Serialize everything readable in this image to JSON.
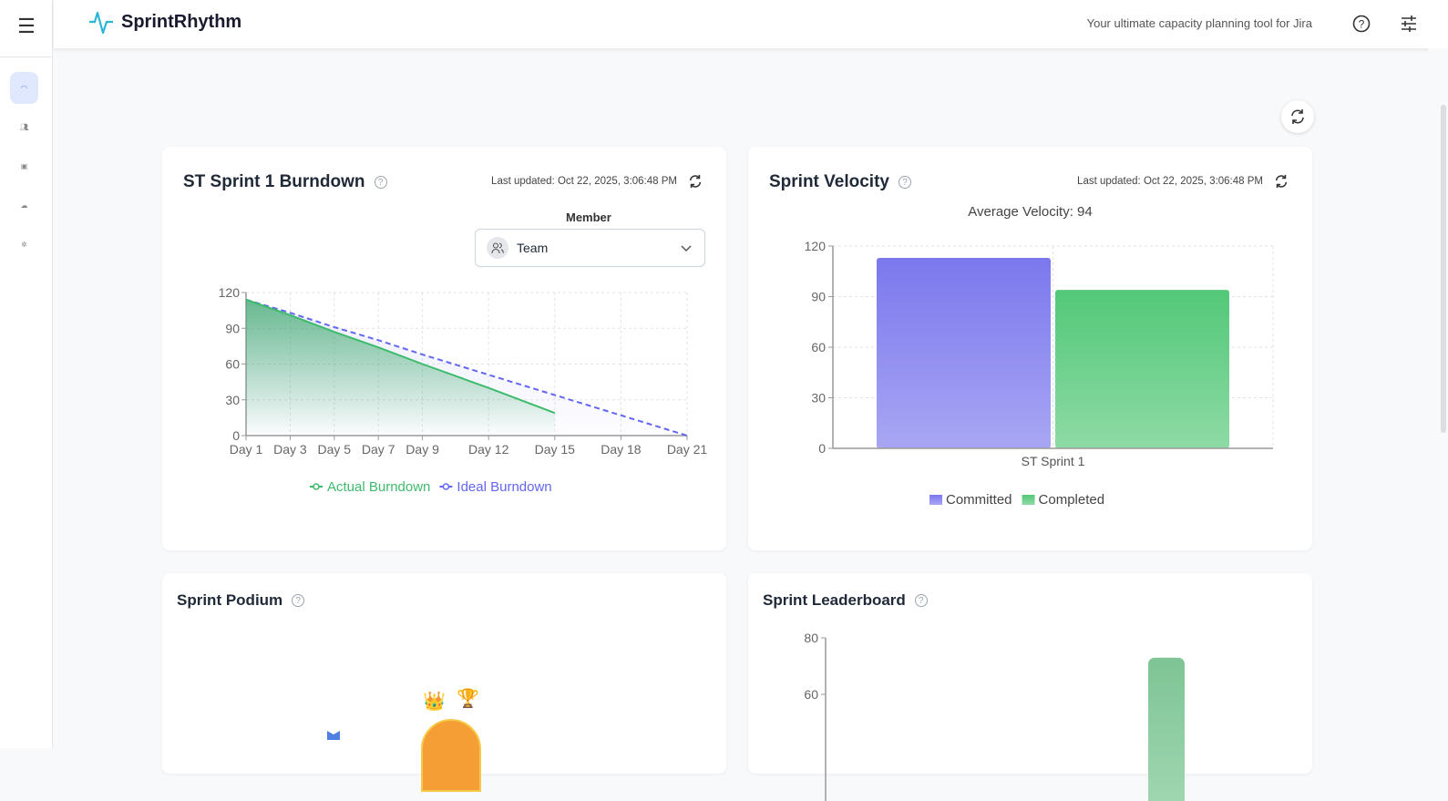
{
  "app": {
    "name": "SprintRhythm",
    "tagline": "Your ultimate capacity planning tool for Jira"
  },
  "sidebar": {
    "items": [
      {
        "icon": "gauge-icon",
        "active": true
      },
      {
        "icon": "users-icon"
      },
      {
        "icon": "clipboard-icon"
      },
      {
        "icon": "cloud-icon"
      },
      {
        "icon": "settings-icon"
      }
    ]
  },
  "burndown": {
    "title": "ST Sprint 1 Burndown",
    "last_updated": "Last updated: Oct 22, 2025, 3:06:48 PM",
    "member_label": "Member",
    "member_value": "Team",
    "chart_data": {
      "type": "line",
      "x": [
        "Day 1",
        "Day 3",
        "Day 5",
        "Day 7",
        "Day 9",
        "Day 12",
        "Day 15",
        "Day 18",
        "Day 21"
      ],
      "x_days": [
        1,
        3,
        5,
        7,
        9,
        12,
        15,
        18,
        21
      ],
      "ylim": [
        0,
        120
      ],
      "yticks": [
        0,
        30,
        60,
        90,
        120
      ],
      "grid": true,
      "legend": "bottom",
      "series": [
        {
          "name": "Actual Burndown",
          "color": "#3dbb6b",
          "values": [
            114,
            101,
            87,
            74,
            60,
            40,
            19,
            null,
            null
          ]
        },
        {
          "name": "Ideal Burndown",
          "color": "#6366f1",
          "dashed": true,
          "values": [
            114,
            103,
            91,
            80,
            68,
            51,
            34,
            17,
            0
          ]
        }
      ]
    }
  },
  "velocity": {
    "title": "Sprint Velocity",
    "last_updated": "Last updated: Oct 22, 2025, 3:06:48 PM",
    "average": "Average Velocity: 94",
    "chart_data": {
      "type": "bar",
      "categories": [
        "ST Sprint 1"
      ],
      "ylim": [
        0,
        120
      ],
      "yticks": [
        0,
        30,
        60,
        90,
        120
      ],
      "grid": true,
      "legend": "bottom",
      "series": [
        {
          "name": "Committed",
          "color": "#7b78ee",
          "values": [
            113
          ]
        },
        {
          "name": "Completed",
          "color": "#52c878",
          "values": [
            94
          ]
        }
      ]
    }
  },
  "podium": {
    "title": "Sprint Podium"
  },
  "leaderboard": {
    "title": "Sprint Leaderboard",
    "chart_data": {
      "type": "bar",
      "yticks": [
        60,
        80
      ],
      "values": [
        73
      ],
      "color": "#7ec495"
    }
  }
}
